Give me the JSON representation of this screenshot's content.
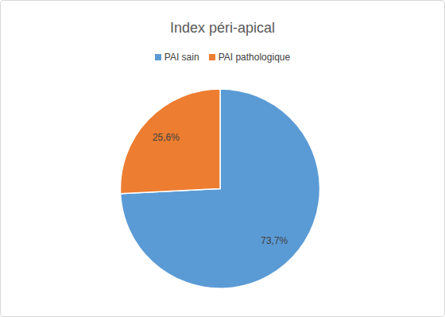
{
  "chart_data": {
    "type": "pie",
    "title": "Index péri-apical",
    "categories": [
      "PAI sain",
      "PAI pathologique"
    ],
    "values": [
      73.7,
      25.6
    ],
    "value_labels": [
      "73,7%",
      "25,6%"
    ],
    "colors": [
      "#5b9bd5",
      "#ed7d31"
    ],
    "legend": "top",
    "data_labels": true
  }
}
